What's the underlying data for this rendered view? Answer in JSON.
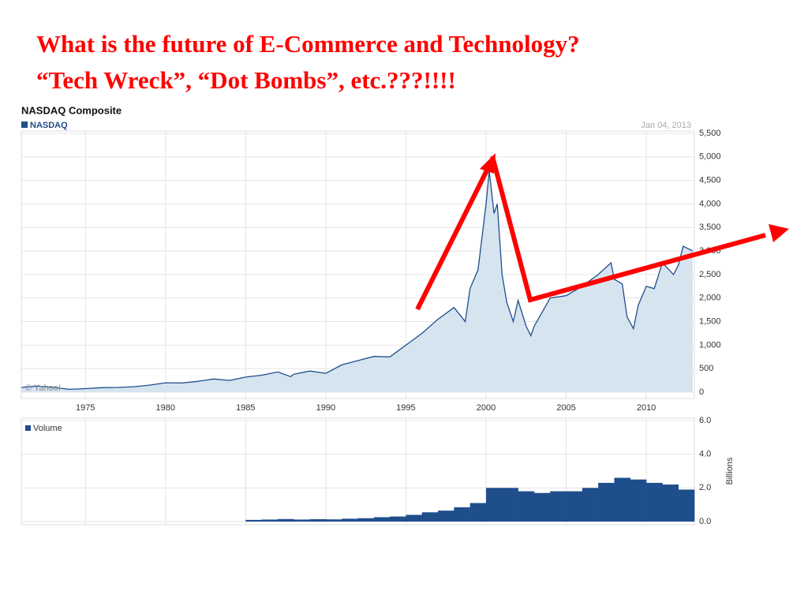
{
  "slide": {
    "title_lines": [
      "What is the future of E-Commerce and Technology?",
      "“Tech Wreck”, “Dot Bombs”, etc.???!!!!"
    ]
  },
  "chart_data": [
    {
      "type": "area",
      "title": "NASDAQ Composite",
      "date_label": "Jan 04, 2013",
      "credit": "© Yahoo!",
      "series_name": "NASDAQ",
      "color": "#1f4e8c",
      "fill": "#d6e4f0",
      "x": [
        1971,
        1972,
        1973,
        1974,
        1975,
        1976,
        1977,
        1978,
        1979,
        1980,
        1981,
        1982,
        1983,
        1984,
        1985,
        1986,
        1987,
        1987.8,
        1988,
        1989,
        1990,
        1991,
        1992,
        1993,
        1994,
        1995,
        1996,
        1997,
        1998,
        1998.7,
        1999,
        1999.5,
        2000,
        2000.2,
        2000.5,
        2000.7,
        2001,
        2001.3,
        2001.7,
        2002,
        2002.5,
        2002.8,
        2003,
        2003.5,
        2004,
        2005,
        2006,
        2007,
        2007.8,
        2008,
        2008.5,
        2008.8,
        2009.2,
        2009.5,
        2010,
        2010.5,
        2011,
        2011.7,
        2012,
        2012.3,
        2012.9
      ],
      "values": [
        100,
        130,
        100,
        60,
        75,
        95,
        100,
        115,
        150,
        200,
        195,
        230,
        280,
        250,
        320,
        360,
        430,
        330,
        380,
        450,
        400,
        580,
        670,
        760,
        750,
        1000,
        1250,
        1550,
        1800,
        1500,
        2200,
        2600,
        4000,
        4700,
        3800,
        4000,
        2500,
        1900,
        1500,
        1950,
        1400,
        1200,
        1400,
        1700,
        2000,
        2050,
        2250,
        2500,
        2750,
        2400,
        2300,
        1600,
        1350,
        1850,
        2250,
        2200,
        2750,
        2500,
        2700,
        3100,
        3000
      ],
      "xlim": [
        1971,
        2013
      ],
      "xticks": [
        1975,
        1980,
        1985,
        1990,
        1995,
        2000,
        2005,
        2010
      ],
      "ylim": [
        0,
        5500
      ],
      "yticks": [
        0,
        500,
        {
          "value": 1000,
          "label": "1,000"
        },
        {
          "value": 1500,
          "label": "1,500"
        },
        {
          "value": 2000,
          "label": "2,000"
        },
        {
          "value": 2500,
          "label": "2,500"
        },
        {
          "value": 3000,
          "label": "3,000"
        },
        {
          "value": 3500,
          "label": "3,500"
        },
        {
          "value": 4000,
          "label": "4,000"
        },
        {
          "value": 4500,
          "label": "4,500"
        },
        {
          "value": 5000,
          "label": "5,000"
        },
        {
          "value": 5500,
          "label": "5,500"
        }
      ],
      "grid": true
    },
    {
      "type": "bar",
      "series_name": "Volume",
      "ylabel": "Billions",
      "color": "#1f4e8c",
      "x": [
        1985,
        1986,
        1987,
        1988,
        1989,
        1990,
        1991,
        1992,
        1993,
        1994,
        1995,
        1996,
        1997,
        1998,
        1999,
        2000,
        2001,
        2002,
        2003,
        2004,
        2005,
        2006,
        2007,
        2008,
        2009,
        2010,
        2011,
        2012
      ],
      "values": [
        0.1,
        0.12,
        0.15,
        0.12,
        0.14,
        0.13,
        0.17,
        0.2,
        0.26,
        0.3,
        0.4,
        0.55,
        0.65,
        0.85,
        1.1,
        2.0,
        2.0,
        1.8,
        1.7,
        1.8,
        1.8,
        2.0,
        2.3,
        2.6,
        2.5,
        2.3,
        2.2,
        1.9
      ],
      "xlim": [
        1971,
        2013
      ],
      "ylim": [
        0,
        6
      ],
      "yticks": [
        {
          "value": 0,
          "label": "0.0"
        },
        {
          "value": 2,
          "label": "2.0"
        },
        {
          "value": 4,
          "label": "4.0"
        },
        {
          "value": 6,
          "label": "6.0"
        }
      ],
      "grid": true
    }
  ]
}
